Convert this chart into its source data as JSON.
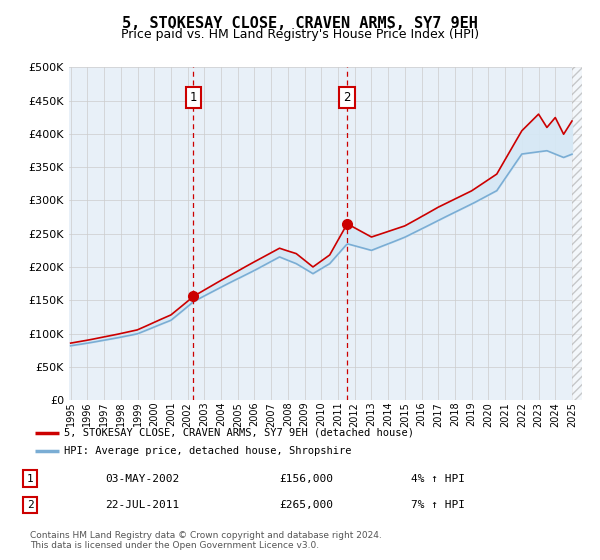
{
  "title": "5, STOKESAY CLOSE, CRAVEN ARMS, SY7 9EH",
  "subtitle": "Price paid vs. HM Land Registry's House Price Index (HPI)",
  "legend_property": "5, STOKESAY CLOSE, CRAVEN ARMS, SY7 9EH (detached house)",
  "legend_hpi": "HPI: Average price, detached house, Shropshire",
  "footnote": "Contains HM Land Registry data © Crown copyright and database right 2024.\nThis data is licensed under the Open Government Licence v3.0.",
  "annotation1": {
    "label": "1",
    "date_str": "03-MAY-2002",
    "price": 156000,
    "year": 2002.35
  },
  "annotation2": {
    "label": "2",
    "date_str": "22-JUL-2011",
    "price": 265000,
    "year": 2011.55
  },
  "table1": [
    "1",
    "03-MAY-2002",
    "£156,000",
    "4% ↑ HPI"
  ],
  "table2": [
    "2",
    "22-JUL-2011",
    "£265,000",
    "7% ↑ HPI"
  ],
  "ylim": [
    0,
    500000
  ],
  "yticks": [
    0,
    50000,
    100000,
    150000,
    200000,
    250000,
    300000,
    350000,
    400000,
    450000,
    500000
  ],
  "line_color_property": "#cc0000",
  "line_color_hpi": "#7aadd4",
  "fill_color": "#d6e8f5",
  "background_color": "#e8f0f8",
  "grid_color": "#cccccc",
  "vline_color": "#cc0000",
  "box_color": "#cc0000",
  "title_fontsize": 11,
  "subtitle_fontsize": 9,
  "hatch_start": 2025.0,
  "xmin": 1994.9,
  "xmax": 2025.6
}
